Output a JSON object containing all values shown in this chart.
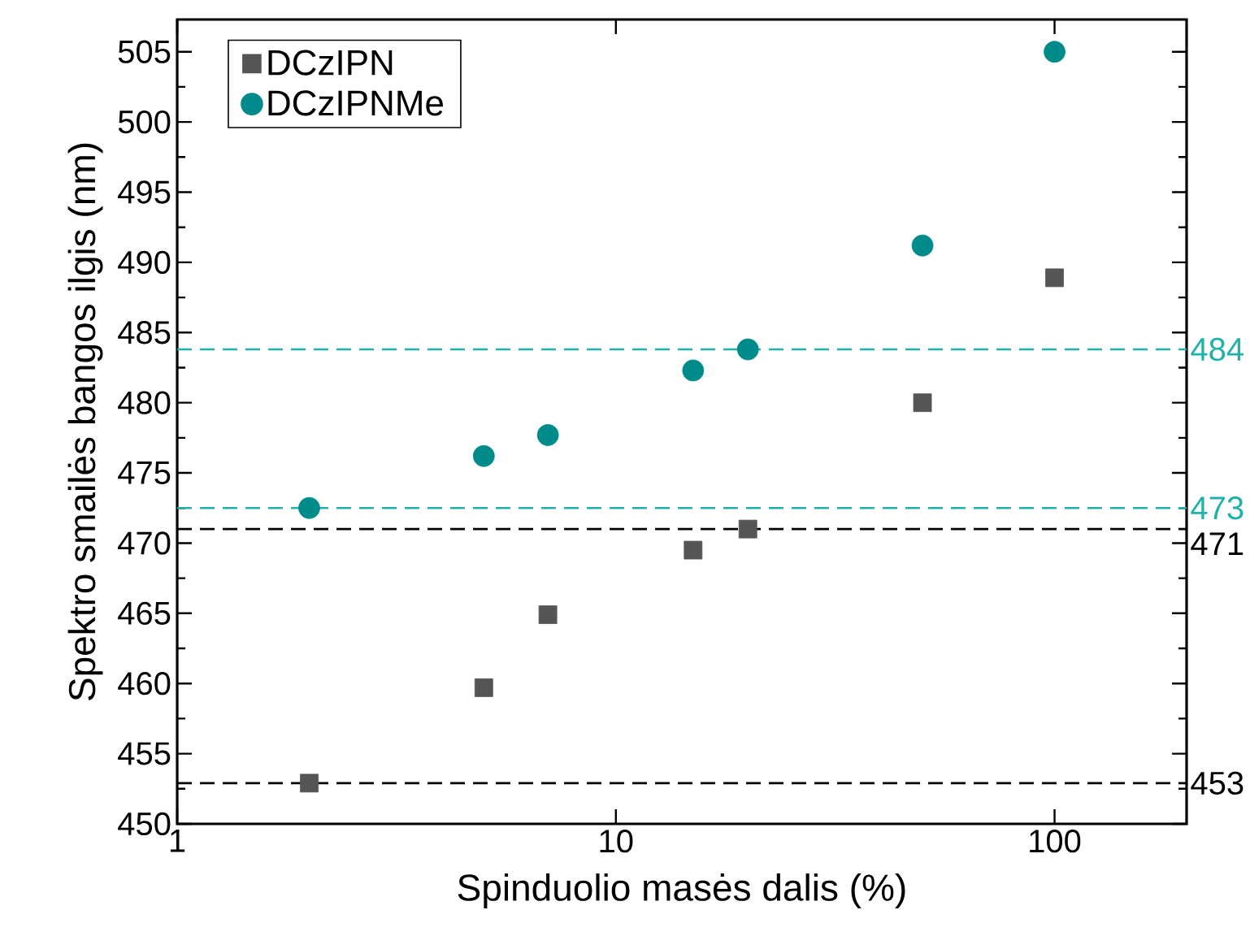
{
  "chart_data": {
    "type": "scatter",
    "xlabel": "Spinduolio masės dalis (%)",
    "ylabel": "Spektro smailės bangos ilgis (nm)",
    "log": "x",
    "xlim": [
      1,
      200
    ],
    "xticks": [
      1,
      10,
      100
    ],
    "ylim": [
      450,
      507.3
    ],
    "yticks": [
      450,
      455,
      460,
      465,
      470,
      475,
      480,
      485,
      490,
      495,
      500,
      505
    ],
    "legend": "top left",
    "x": [
      2,
      5,
      7,
      15,
      20,
      50,
      100
    ],
    "series": [
      {
        "name": "DCzIPN",
        "color": "#555555",
        "marker": "square",
        "values": [
          452.9,
          459.7,
          464.9,
          469.5,
          471.0,
          480.0,
          488.9
        ]
      },
      {
        "name": "DCzIPNMe",
        "color": "#008b8b",
        "marker": "circle",
        "values": [
          472.5,
          476.2,
          477.7,
          482.3,
          483.8,
          491.2,
          505.0
        ]
      }
    ],
    "ref_lines": [
      {
        "axis": "y",
        "value": 483.8,
        "label": "484",
        "color": "#20b2aa",
        "line_style": "dashed"
      },
      {
        "axis": "y",
        "value": 472.5,
        "label": "473",
        "color": "#20b2aa",
        "line_style": "dashed"
      },
      {
        "axis": "y",
        "value": 471.0,
        "label": "471",
        "color": "#000000",
        "line_style": "dashed"
      },
      {
        "axis": "y",
        "value": 452.9,
        "label": "453",
        "color": "#000000",
        "line_style": "dashed"
      }
    ]
  }
}
